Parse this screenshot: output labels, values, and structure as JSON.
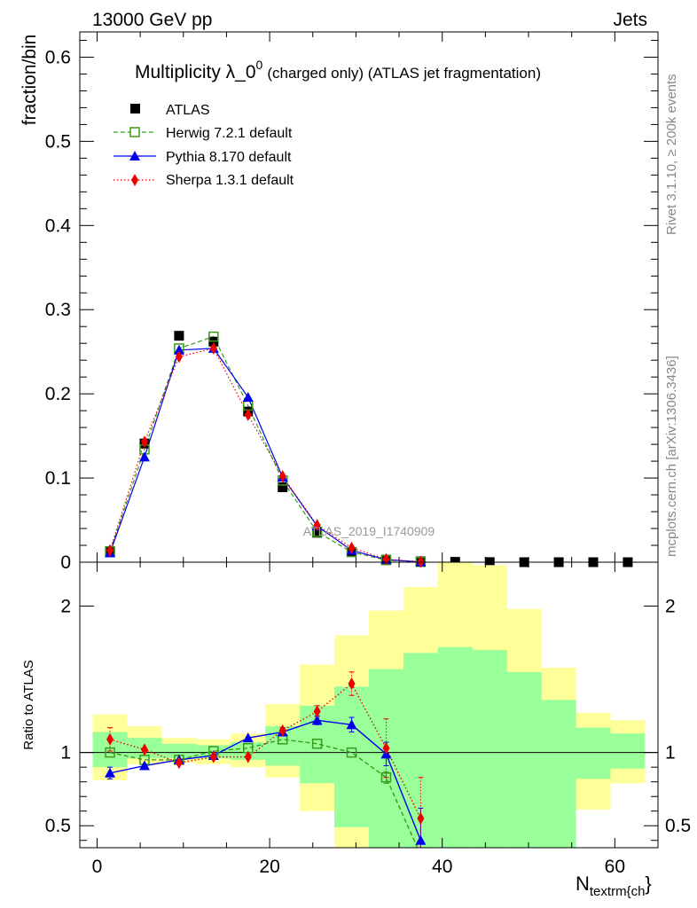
{
  "header": {
    "left": "13000 GeV pp",
    "right": "Jets"
  },
  "side_labels": {
    "rivet": "Rivet 3.1.10, ≥ 200k events",
    "mcplots": "mcplots.cern.ch [arXiv:1306.3436]"
  },
  "watermark": "ATLAS_2019_I1740909",
  "chart_data": [
    {
      "type": "scatter",
      "panel": "main",
      "title_main": "Multiplicity λ_0",
      "title_sup": "0",
      "title_rest": "(charged only) (ATLAS jet fragmentation)",
      "xlabel": "N",
      "xlabel_sub": "textrm{ch",
      "xlabel_close": "}",
      "ylabel": "fraction/bin",
      "xlim": [
        -2,
        65
      ],
      "ylim": [
        0,
        0.63
      ],
      "xticks": [
        0,
        20,
        40,
        60
      ],
      "yticks": [
        0,
        0.1,
        0.2,
        0.3,
        0.4,
        0.5,
        0.6
      ],
      "ytick_labels": [
        "0",
        "0.1",
        "0.2",
        "0.3",
        "0.4",
        "0.5",
        "0.6"
      ],
      "legend_position": "top-left",
      "colors": {
        "atlas": "#000000",
        "herwig": "#3a9a1a",
        "pythia": "#0000ee",
        "sherpa": "#ee0000"
      },
      "series": [
        {
          "name": "ATLAS",
          "key": "atlas",
          "x": [
            1.5,
            5.5,
            9.5,
            13.5,
            17.5,
            21.5,
            25.5,
            29.5,
            33.5,
            37.5,
            41.5,
            45.5,
            49.5,
            53.5,
            57.5,
            61.5
          ],
          "y": [
            0.013,
            0.141,
            0.269,
            0.262,
            0.179,
            0.089,
            0.035,
            0.012,
            0.003,
            0.001,
            0.0004,
            0.0001,
            0.0,
            0.0,
            0.0,
            0.0
          ]
        },
        {
          "name": "Herwig 7.2.1 default",
          "key": "herwig",
          "x": [
            1.5,
            5.5,
            9.5,
            13.5,
            17.5,
            21.5,
            25.5,
            29.5,
            33.5,
            37.5
          ],
          "y": [
            0.013,
            0.134,
            0.254,
            0.268,
            0.186,
            0.097,
            0.036,
            0.012,
            0.0025,
            0.0003
          ]
        },
        {
          "name": "Pythia 8.170 default",
          "key": "pythia",
          "x": [
            1.5,
            5.5,
            9.5,
            13.5,
            17.5,
            21.5,
            25.5,
            29.5,
            33.5,
            37.5
          ],
          "y": [
            0.011,
            0.125,
            0.252,
            0.254,
            0.196,
            0.101,
            0.043,
            0.014,
            0.003,
            0.0003
          ]
        },
        {
          "name": "Sherpa 1.3.1 default",
          "key": "sherpa",
          "x": [
            1.5,
            5.5,
            9.5,
            13.5,
            17.5,
            21.5,
            25.5,
            29.5,
            33.5,
            37.5
          ],
          "y": [
            0.014,
            0.143,
            0.244,
            0.254,
            0.175,
            0.102,
            0.044,
            0.017,
            0.0035,
            0.0005
          ]
        }
      ]
    },
    {
      "type": "scatter",
      "panel": "ratio",
      "ylabel": "Ratio to ATLAS",
      "xlim": [
        -2,
        65
      ],
      "ylim": [
        0.35,
        2.3
      ],
      "yticks": [
        0.5,
        1,
        2
      ],
      "ytick_labels": [
        "0.5",
        "1",
        "2"
      ],
      "bands": {
        "bin_edges": [
          -0.5,
          3.5,
          7.5,
          11.5,
          15.5,
          19.5,
          23.5,
          27.5,
          31.5,
          35.5,
          39.5,
          43.5,
          47.5,
          51.5,
          55.5,
          59.5,
          63.5
        ],
        "outer_color": "#ffff99",
        "inner_color": "#99ff99",
        "outer_low": [
          0.81,
          0.92,
          0.93,
          0.92,
          0.9,
          0.83,
          0.6,
          0.35,
          0.35,
          0.35,
          0.35,
          0.35,
          0.35,
          0.35,
          0.61,
          0.79
        ],
        "outer_high": [
          1.26,
          1.18,
          1.1,
          1.09,
          1.13,
          1.33,
          1.6,
          1.8,
          1.97,
          2.13,
          2.3,
          2.28,
          1.98,
          1.58,
          1.27,
          1.22
        ],
        "inner_low": [
          0.9,
          0.96,
          0.96,
          0.96,
          0.95,
          0.91,
          0.79,
          0.49,
          0.35,
          0.35,
          0.35,
          0.35,
          0.35,
          0.35,
          0.82,
          0.89
        ],
        "inner_high": [
          1.14,
          1.1,
          1.06,
          1.05,
          1.07,
          1.18,
          1.32,
          1.45,
          1.57,
          1.68,
          1.72,
          1.7,
          1.55,
          1.36,
          1.17,
          1.13
        ]
      },
      "series": [
        {
          "key": "herwig",
          "x": [
            1.5,
            5.5,
            9.5,
            13.5,
            17.5,
            21.5,
            25.5,
            29.5,
            33.5,
            37.5
          ],
          "y": [
            1.0,
            0.95,
            0.95,
            1.01,
            1.03,
            1.09,
            1.06,
            1.0,
            0.83,
            0.3
          ],
          "err": [
            0.0,
            0.0,
            0.0,
            0.0,
            0.0,
            0.0,
            0.0,
            0.0,
            0.04,
            0.0
          ]
        },
        {
          "key": "pythia",
          "x": [
            1.5,
            5.5,
            9.5,
            13.5,
            17.5,
            21.5,
            25.5,
            29.5,
            33.5,
            37.5
          ],
          "y": [
            0.86,
            0.91,
            0.95,
            0.98,
            1.1,
            1.14,
            1.22,
            1.19,
            0.99,
            0.4
          ],
          "err": [
            0.04,
            0.0,
            0.0,
            0.0,
            0.0,
            0.02,
            0.03,
            0.05,
            0.08,
            0.22
          ]
        },
        {
          "key": "sherpa",
          "x": [
            1.5,
            5.5,
            9.5,
            13.5,
            17.5,
            21.5,
            25.5,
            29.5,
            33.5,
            37.5
          ],
          "y": [
            1.09,
            1.02,
            0.93,
            0.97,
            0.97,
            1.15,
            1.28,
            1.47,
            1.03,
            0.55
          ],
          "err": [
            0.08,
            0.0,
            0.0,
            0.0,
            0.0,
            0.02,
            0.04,
            0.08,
            0.2,
            0.28
          ]
        }
      ]
    }
  ]
}
